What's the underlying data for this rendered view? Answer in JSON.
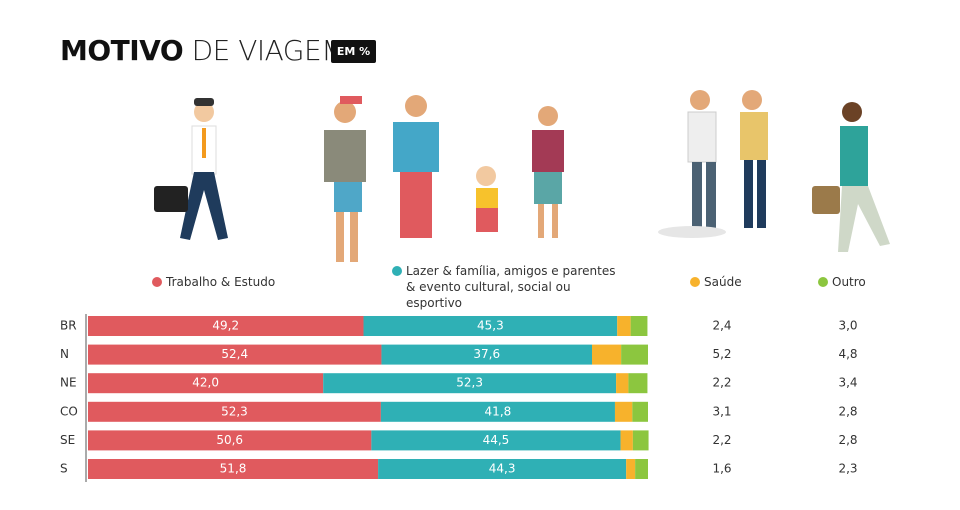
{
  "chart_data": {
    "type": "stacked-bar-horizontal",
    "title_bold": "MOTIVO",
    "title_rest": "DE VIAGEM",
    "badge": "EM %",
    "categories": [
      "BR",
      "N",
      "NE",
      "CO",
      "SE",
      "S"
    ],
    "xlim": [
      0,
      100
    ],
    "series": [
      {
        "name": "Trabalho & Estudo",
        "color": "#e05a5e",
        "values": [
          49.2,
          52.4,
          42.0,
          52.3,
          50.6,
          51.8
        ],
        "value_labels": [
          "49,2",
          "52,4",
          "42,0",
          "52,3",
          "50,6",
          "51,8"
        ]
      },
      {
        "name": "Lazer & família, amigos e parentes & evento cultural, social ou esportivo",
        "color": "#2fb0b5",
        "values": [
          45.3,
          37.6,
          52.3,
          41.8,
          44.5,
          44.3
        ],
        "value_labels": [
          "45,3",
          "37,6",
          "52,3",
          "41,8",
          "44,5",
          "44,3"
        ]
      },
      {
        "name": "Saúde",
        "color": "#f7b22c",
        "values": [
          2.4,
          5.2,
          2.2,
          3.1,
          2.2,
          1.6
        ],
        "value_labels": [
          "2,4",
          "5,2",
          "2,2",
          "3,1",
          "2,2",
          "1,6"
        ]
      },
      {
        "name": "Outro",
        "color": "#8cc63f",
        "values": [
          3.0,
          4.8,
          3.4,
          2.8,
          2.8,
          2.3
        ],
        "value_labels": [
          "3,0",
          "4,8",
          "3,4",
          "2,8",
          "2,8",
          "2,3"
        ]
      }
    ]
  }
}
